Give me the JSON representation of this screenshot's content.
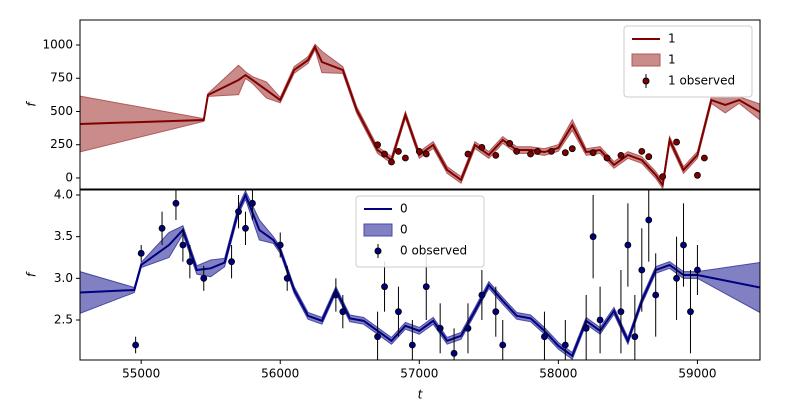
{
  "chart_data": [
    {
      "type": "line",
      "ylabel": "f",
      "xlim": [
        54560,
        59450
      ],
      "ylim": [
        -83,
        1188
      ],
      "yticks": [
        0,
        250,
        500,
        750,
        1000
      ],
      "legend": "upper right",
      "x": [
        54560,
        55450,
        55480,
        55700,
        55750,
        55800,
        55900,
        56000,
        56100,
        56200,
        56250,
        56300,
        56450,
        56550,
        56700,
        56800,
        56900,
        57000,
        57100,
        57200,
        57300,
        57400,
        57500,
        57600,
        57700,
        57800,
        57900,
        58000,
        58100,
        58200,
        58300,
        58400,
        58500,
        58600,
        58700,
        58750,
        58800,
        58900,
        59000,
        59100,
        59200,
        59300,
        59450
      ],
      "series": [
        {
          "name": "1",
          "color": "#800000",
          "values": [
            406,
            436,
            624,
            737,
            774,
            737,
            662,
            586,
            812,
            887,
            985,
            872,
            812,
            511,
            210,
            135,
            474,
            173,
            248,
            60,
            -15,
            248,
            173,
            286,
            210,
            210,
            195,
            226,
            398,
            195,
            210,
            98,
            173,
            135,
            23,
            -53,
            286,
            60,
            173,
            586,
            549,
            586,
            496
          ]
        },
        {
          "name": "1",
          "color": "#b35a5a",
          "lower": [
            196,
            426,
            614,
            627,
            749,
            712,
            602,
            566,
            787,
            862,
            965,
            792,
            787,
            486,
            185,
            110,
            449,
            148,
            223,
            35,
            -40,
            223,
            148,
            261,
            185,
            185,
            170,
            201,
            358,
            170,
            185,
            73,
            148,
            110,
            -2,
            -78,
            261,
            35,
            148,
            561,
            489,
            561,
            436
          ],
          "upper": [
            616,
            446,
            634,
            847,
            799,
            762,
            722,
            606,
            837,
            912,
            1005,
            952,
            837,
            536,
            235,
            160,
            499,
            198,
            273,
            85,
            10,
            273,
            198,
            311,
            235,
            235,
            220,
            251,
            438,
            220,
            235,
            123,
            198,
            160,
            48,
            -28,
            311,
            85,
            198,
            611,
            609,
            611,
            556
          ]
        },
        {
          "name": "1 observed",
          "color": "#800000",
          "x": [
            56700,
            56750,
            56800,
            56850,
            56900,
            57000,
            57050,
            57350,
            57450,
            57550,
            57650,
            57700,
            57800,
            57850,
            57950,
            58050,
            58100,
            58250,
            58350,
            58450,
            58600,
            58650,
            58750,
            58850,
            59000,
            59050
          ],
          "values": [
            250,
            180,
            120,
            200,
            150,
            200,
            180,
            180,
            230,
            170,
            260,
            200,
            180,
            200,
            200,
            190,
            220,
            190,
            150,
            170,
            200,
            160,
            10,
            270,
            20,
            150
          ],
          "errors": [
            20,
            20,
            20,
            20,
            20,
            20,
            20,
            20,
            20,
            20,
            20,
            20,
            20,
            20,
            20,
            20,
            20,
            20,
            20,
            20,
            20,
            20,
            20,
            20,
            20,
            20
          ]
        }
      ]
    },
    {
      "type": "line",
      "ylabel": "f",
      "xlabel": "t",
      "xlim": [
        54560,
        59450
      ],
      "ylim": [
        2.02,
        4.06
      ],
      "xticks": [
        55000,
        56000,
        57000,
        58000,
        59000
      ],
      "yticks": [
        2.5,
        {
          "value": 3,
          "label": "3.0"
        },
        3.5,
        {
          "value": 4,
          "label": "4.0"
        }
      ],
      "legend": "upper center",
      "x": [
        54560,
        54950,
        55000,
        55200,
        55300,
        55400,
        55500,
        55600,
        55700,
        55750,
        55850,
        55950,
        56000,
        56100,
        56200,
        56300,
        56400,
        56500,
        56600,
        56700,
        56800,
        56900,
        57000,
        57100,
        57200,
        57300,
        57400,
        57500,
        57600,
        57700,
        57800,
        57900,
        58000,
        58100,
        58200,
        58300,
        58400,
        58500,
        58600,
        58700,
        58800,
        58900,
        59000,
        59450
      ],
      "series": [
        {
          "name": "0",
          "color": "#000080",
          "values": [
            2.83,
            2.86,
            3.16,
            3.4,
            3.58,
            3.1,
            3.12,
            3.19,
            3.82,
            4.0,
            3.58,
            3.46,
            3.34,
            2.86,
            2.55,
            2.49,
            2.86,
            2.52,
            2.49,
            2.37,
            2.25,
            2.43,
            2.37,
            2.49,
            2.25,
            2.31,
            2.61,
            2.92,
            2.73,
            2.55,
            2.52,
            2.37,
            2.19,
            2.07,
            2.49,
            2.37,
            2.61,
            2.25,
            2.73,
            3.1,
            3.16,
            3.04,
            3.04,
            2.89
          ]
        },
        {
          "name": "0",
          "color": "#4a4aa8",
          "lower": [
            2.58,
            2.83,
            3.13,
            3.25,
            3.53,
            3.05,
            3.02,
            3.14,
            3.77,
            3.95,
            3.46,
            3.42,
            3.3,
            2.82,
            2.51,
            2.45,
            2.82,
            2.48,
            2.45,
            2.33,
            2.21,
            2.39,
            2.33,
            2.45,
            2.21,
            2.27,
            2.57,
            2.88,
            2.69,
            2.51,
            2.48,
            2.33,
            2.15,
            2.03,
            2.45,
            2.33,
            2.57,
            2.21,
            2.69,
            3.06,
            3.12,
            3.0,
            3.0,
            2.59
          ],
          "upper": [
            3.08,
            2.89,
            3.19,
            3.55,
            3.63,
            3.15,
            3.22,
            3.24,
            3.87,
            4.05,
            3.7,
            3.5,
            3.38,
            2.9,
            2.59,
            2.53,
            2.9,
            2.56,
            2.53,
            2.41,
            2.29,
            2.47,
            2.41,
            2.53,
            2.29,
            2.35,
            2.65,
            2.96,
            2.77,
            2.59,
            2.56,
            2.41,
            2.23,
            2.11,
            2.53,
            2.41,
            2.65,
            2.29,
            2.77,
            3.14,
            3.2,
            3.08,
            3.08,
            3.19
          ]
        },
        {
          "name": "0 observed",
          "color": "#000080",
          "x": [
            54960,
            55000,
            55150,
            55250,
            55300,
            55350,
            55450,
            55650,
            55700,
            55750,
            55800,
            56000,
            56050,
            56400,
            56450,
            56700,
            56750,
            56850,
            56950,
            57050,
            57150,
            57250,
            57350,
            57450,
            57550,
            57600,
            57900,
            58050,
            58200,
            58250,
            58300,
            58450,
            58500,
            58550,
            58600,
            58650,
            58700,
            58850,
            58900,
            58950,
            59000
          ],
          "values": [
            2.2,
            3.3,
            3.6,
            3.9,
            3.4,
            3.2,
            3.0,
            3.2,
            3.8,
            3.6,
            3.9,
            3.4,
            3.0,
            2.8,
            2.6,
            2.3,
            2.9,
            2.6,
            2.2,
            2.9,
            2.4,
            2.1,
            2.4,
            2.8,
            2.6,
            2.2,
            2.3,
            2.2,
            2.4,
            3.5,
            2.5,
            2.6,
            3.4,
            2.3,
            3.1,
            3.7,
            2.8,
            3.0,
            3.4,
            2.6,
            3.1
          ],
          "errors": [
            0.1,
            0.1,
            0.2,
            0.2,
            0.2,
            0.2,
            0.15,
            0.2,
            0.2,
            0.2,
            0.2,
            0.15,
            0.15,
            0.2,
            0.2,
            0.3,
            0.3,
            0.3,
            0.3,
            0.4,
            0.3,
            0.3,
            0.3,
            0.3,
            0.3,
            0.3,
            0.3,
            0.3,
            0.4,
            0.5,
            0.4,
            0.5,
            0.5,
            0.5,
            0.5,
            0.5,
            0.5,
            0.5,
            0.5,
            0.5,
            0.3
          ]
        }
      ]
    }
  ]
}
